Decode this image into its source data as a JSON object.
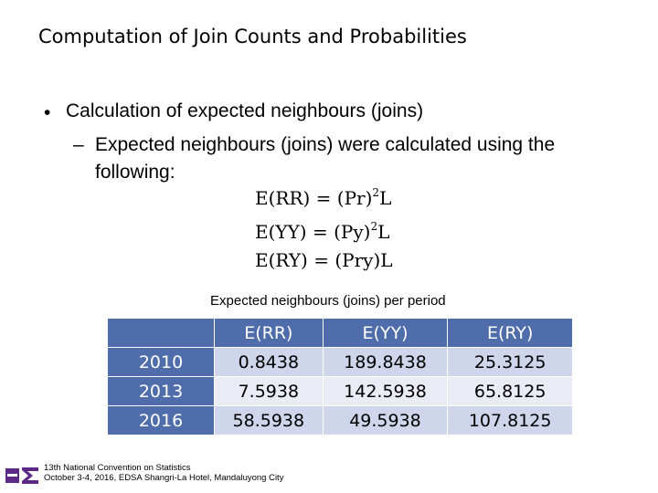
{
  "title": "Computation of Join Counts and Probabilities",
  "bullet": {
    "marker": "•",
    "text": "Calculation of expected neighbours (joins)"
  },
  "sub_bullet": {
    "marker": "–",
    "text": "Expected neighbours (joins) were calculated using the following:"
  },
  "formulas": [
    {
      "lhs": "E(RR) = (Pr)",
      "exp": "2",
      "rhs": "L"
    },
    {
      "lhs": "E(YY) = (Py)",
      "exp": "2",
      "rhs": "L"
    },
    {
      "lhs": "E(RY) = (Pry)",
      "exp": "",
      "rhs": "L"
    }
  ],
  "table": {
    "caption": "Expected neighbours (joins) per period",
    "headers": [
      "",
      "E(RR)",
      "E(YY)",
      "E(RY)"
    ],
    "rows": [
      [
        "2010",
        "0.8438",
        "189.8438",
        "25.3125"
      ],
      [
        "2013",
        "7.5938",
        "142.5938",
        "65.8125"
      ],
      [
        "2016",
        "58.5938",
        "49.5938",
        "107.8125"
      ]
    ]
  },
  "footer": {
    "line1": "13th National Convention on Statistics",
    "line2": "October 3-4, 2016, EDSA Shangri-La Hotel, Mandaluyong City"
  },
  "colors": {
    "header_fill": "#4f6cab",
    "row_dark": "#cfd5ea",
    "row_light": "#e9ebf5",
    "logo_purple": "#5b2a86"
  }
}
